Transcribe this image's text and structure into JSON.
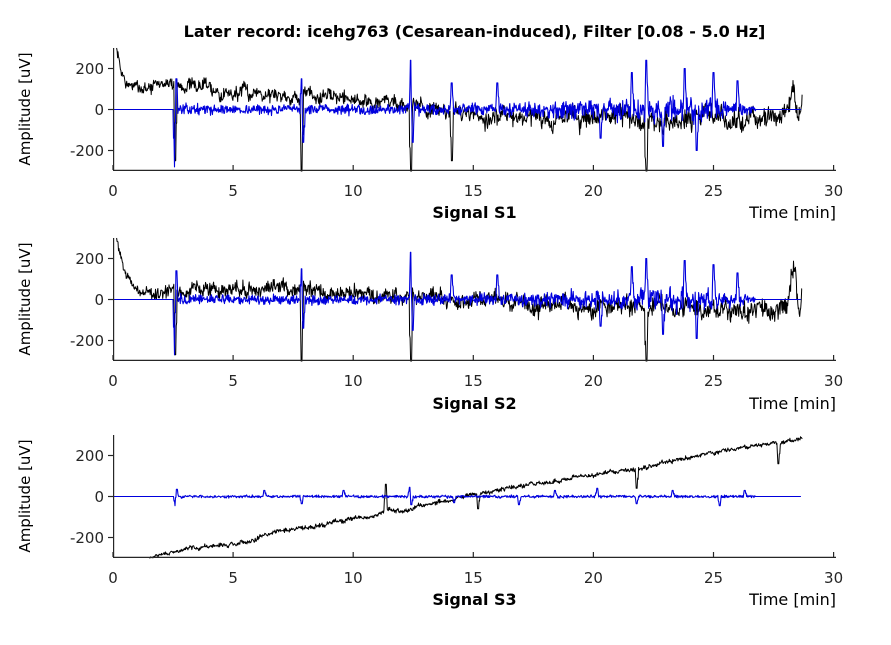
{
  "title": "Later record: icehg763 (Cesarean-induced), Filter [0.08 - 5.0 Hz]",
  "colors": {
    "raw_signal": "#000000",
    "filtered_signal": "#0000dd",
    "axis": "#262626",
    "tick_label": "#262626",
    "text": "#000000",
    "background": "#ffffff"
  },
  "chart_data": [
    {
      "type": "line",
      "xlabel": "Signal S1",
      "xlabel_right": "Time [min]",
      "ylabel": "Amplitude [uV]",
      "xlim": [
        0,
        30.1
      ],
      "ylim": [
        -300,
        300
      ],
      "xticks": [
        0,
        5,
        10,
        15,
        20,
        25,
        30
      ],
      "yticks": [
        200,
        0,
        -200
      ],
      "grid": false,
      "series": [
        {
          "name": "raw-signal",
          "kind": "raw",
          "color": "#000000",
          "seed": 7,
          "x_range": [
            0.15,
            28.7
          ],
          "trend": [
            [
              0.15,
              300
            ],
            [
              0.35,
              170
            ],
            [
              0.6,
              110
            ],
            [
              1.2,
              105
            ],
            [
              1.8,
              115
            ],
            [
              2.4,
              120
            ],
            [
              3.2,
              95
            ],
            [
              3.8,
              120
            ],
            [
              4.3,
              90
            ],
            [
              5.2,
              85
            ],
            [
              6.0,
              95
            ],
            [
              6.8,
              75
            ],
            [
              7.6,
              60
            ],
            [
              8.4,
              70
            ],
            [
              9.2,
              50
            ],
            [
              10.0,
              55
            ],
            [
              10.8,
              35
            ],
            [
              11.6,
              45
            ],
            [
              12.4,
              25
            ],
            [
              13.2,
              5
            ],
            [
              14.0,
              -10
            ],
            [
              15.0,
              -20
            ],
            [
              16.0,
              -30
            ],
            [
              17.0,
              -25
            ],
            [
              18.0,
              -45
            ],
            [
              19.0,
              -35
            ],
            [
              20.0,
              -55
            ],
            [
              21.0,
              -40
            ],
            [
              22.0,
              -60
            ],
            [
              23.0,
              -45
            ],
            [
              24.0,
              -60
            ],
            [
              25.0,
              -45
            ],
            [
              25.8,
              -70
            ],
            [
              26.6,
              -50
            ],
            [
              27.4,
              -80
            ],
            [
              28.0,
              -30
            ],
            [
              28.3,
              90
            ],
            [
              28.55,
              -60
            ],
            [
              28.7,
              30
            ]
          ],
          "amp": [
            [
              0.2,
              30
            ],
            [
              2,
              40
            ],
            [
              5,
              45
            ],
            [
              8,
              45
            ],
            [
              12,
              45
            ],
            [
              16,
              55
            ],
            [
              20,
              65
            ],
            [
              24,
              70
            ],
            [
              27,
              60
            ],
            [
              28.7,
              70
            ]
          ],
          "spikes": [
            {
              "t": 2.6,
              "v": -250
            },
            {
              "t": 7.85,
              "v": -300
            },
            {
              "t": 12.4,
              "v": -400
            },
            {
              "t": 14.1,
              "v": -250
            },
            {
              "t": 22.2,
              "v": -380
            }
          ]
        },
        {
          "name": "filtered-signal",
          "kind": "filtered",
          "color": "#0000dd",
          "seed": 13,
          "x_range": [
            0,
            28.65
          ],
          "active": [
            2.55,
            26.75
          ],
          "trend": [
            [
              0,
              0
            ],
            [
              30,
              0
            ]
          ],
          "amp": [
            [
              2.6,
              35
            ],
            [
              5,
              30
            ],
            [
              9,
              35
            ],
            [
              12,
              35
            ],
            [
              14,
              40
            ],
            [
              16,
              40
            ],
            [
              18,
              55
            ],
            [
              20,
              65
            ],
            [
              22,
              80
            ],
            [
              23.5,
              85
            ],
            [
              25,
              75
            ],
            [
              26,
              50
            ],
            [
              26.7,
              25
            ]
          ],
          "spikes": [
            {
              "t": 2.58,
              "v": -280
            },
            {
              "t": 2.64,
              "v": 150
            },
            {
              "t": 7.85,
              "v": 150
            },
            {
              "t": 7.92,
              "v": -160
            },
            {
              "t": 12.4,
              "v": 240
            },
            {
              "t": 12.47,
              "v": -160
            },
            {
              "t": 14.1,
              "v": 130
            },
            {
              "t": 16.0,
              "v": 130
            },
            {
              "t": 20.3,
              "v": -140
            },
            {
              "t": 21.6,
              "v": 180
            },
            {
              "t": 22.2,
              "v": 240
            },
            {
              "t": 22.9,
              "v": -180
            },
            {
              "t": 23.8,
              "v": 200
            },
            {
              "t": 24.3,
              "v": -200
            },
            {
              "t": 25.0,
              "v": 180
            },
            {
              "t": 26.0,
              "v": 140
            }
          ]
        }
      ]
    },
    {
      "type": "line",
      "xlabel": "Signal S2",
      "xlabel_right": "Time [min]",
      "ylabel": "Amplitude [uV]",
      "xlim": [
        0,
        30.1
      ],
      "ylim": [
        -300,
        300
      ],
      "xticks": [
        0,
        5,
        10,
        15,
        20,
        25,
        30
      ],
      "yticks": [
        200,
        0,
        -200
      ],
      "grid": false,
      "series": [
        {
          "name": "raw-signal",
          "kind": "raw",
          "color": "#000000",
          "seed": 101,
          "x_range": [
            0.15,
            28.7
          ],
          "trend": [
            [
              0.15,
              300
            ],
            [
              0.35,
              200
            ],
            [
              0.6,
              120
            ],
            [
              0.9,
              60
            ],
            [
              1.3,
              25
            ],
            [
              2.0,
              35
            ],
            [
              2.8,
              45
            ],
            [
              3.6,
              60
            ],
            [
              4.4,
              40
            ],
            [
              5.2,
              55
            ],
            [
              6.0,
              40
            ],
            [
              6.8,
              60
            ],
            [
              7.6,
              70
            ],
            [
              8.4,
              55
            ],
            [
              9.2,
              30
            ],
            [
              10.0,
              40
            ],
            [
              11.0,
              25
            ],
            [
              12.0,
              30
            ],
            [
              13.0,
              10
            ],
            [
              14.0,
              0
            ],
            [
              15.0,
              -10
            ],
            [
              16.0,
              5
            ],
            [
              17.0,
              -15
            ],
            [
              18.0,
              -30
            ],
            [
              19.0,
              -15
            ],
            [
              20.0,
              -40
            ],
            [
              21.0,
              -25
            ],
            [
              22.0,
              -45
            ],
            [
              23.0,
              -30
            ],
            [
              24.0,
              -50
            ],
            [
              25.0,
              -35
            ],
            [
              26.0,
              -55
            ],
            [
              26.8,
              -35
            ],
            [
              27.6,
              -70
            ],
            [
              28.1,
              -20
            ],
            [
              28.4,
              180
            ],
            [
              28.6,
              -80
            ],
            [
              28.7,
              20
            ]
          ],
          "amp": [
            [
              0.2,
              25
            ],
            [
              2,
              40
            ],
            [
              5,
              45
            ],
            [
              8,
              45
            ],
            [
              12,
              45
            ],
            [
              16,
              50
            ],
            [
              20,
              60
            ],
            [
              24,
              65
            ],
            [
              27,
              60
            ],
            [
              28.7,
              70
            ]
          ],
          "spikes": [
            {
              "t": 2.6,
              "v": -270
            },
            {
              "t": 7.85,
              "v": -300
            },
            {
              "t": 12.4,
              "v": -400
            },
            {
              "t": 22.2,
              "v": -380
            }
          ]
        },
        {
          "name": "filtered-signal",
          "kind": "filtered",
          "color": "#0000dd",
          "seed": 57,
          "x_range": [
            0,
            28.65
          ],
          "active": [
            2.55,
            26.75
          ],
          "trend": [
            [
              0,
              0
            ],
            [
              30,
              0
            ]
          ],
          "amp": [
            [
              2.6,
              35
            ],
            [
              5,
              30
            ],
            [
              9,
              35
            ],
            [
              12,
              35
            ],
            [
              14,
              40
            ],
            [
              16,
              40
            ],
            [
              18,
              50
            ],
            [
              20,
              60
            ],
            [
              22,
              70
            ],
            [
              23.5,
              80
            ],
            [
              25,
              70
            ],
            [
              26,
              45
            ],
            [
              26.7,
              25
            ]
          ],
          "spikes": [
            {
              "t": 2.58,
              "v": -270
            },
            {
              "t": 2.64,
              "v": 140
            },
            {
              "t": 7.85,
              "v": 150
            },
            {
              "t": 7.92,
              "v": -140
            },
            {
              "t": 12.4,
              "v": 230
            },
            {
              "t": 12.47,
              "v": -150
            },
            {
              "t": 14.1,
              "v": 120
            },
            {
              "t": 16.0,
              "v": 120
            },
            {
              "t": 20.3,
              "v": -130
            },
            {
              "t": 21.6,
              "v": 160
            },
            {
              "t": 22.2,
              "v": 200
            },
            {
              "t": 22.9,
              "v": -170
            },
            {
              "t": 23.8,
              "v": 190
            },
            {
              "t": 24.3,
              "v": -190
            },
            {
              "t": 25.0,
              "v": 170
            },
            {
              "t": 26.0,
              "v": 130
            }
          ]
        }
      ]
    },
    {
      "type": "line",
      "xlabel": "Signal S3",
      "xlabel_right": "Time [min]",
      "ylabel": "Amplitude [uV]",
      "xlim": [
        0,
        30.1
      ],
      "ylim": [
        -300,
        300
      ],
      "xticks": [
        0,
        5,
        10,
        15,
        20,
        25,
        30
      ],
      "yticks": [
        200,
        0,
        -200
      ],
      "grid": false,
      "series": [
        {
          "name": "raw-signal",
          "kind": "raw",
          "color": "#000000",
          "seed": 29,
          "x_range": [
            1.5,
            28.7
          ],
          "trend": [
            [
              1.5,
              -300
            ],
            [
              2.0,
              -285
            ],
            [
              2.6,
              -270
            ],
            [
              3.2,
              -250
            ],
            [
              4.0,
              -245
            ],
            [
              5.0,
              -235
            ],
            [
              5.8,
              -210
            ],
            [
              6.5,
              -180
            ],
            [
              7.2,
              -165
            ],
            [
              8.0,
              -150
            ],
            [
              9.0,
              -130
            ],
            [
              10.0,
              -110
            ],
            [
              11.0,
              -90
            ],
            [
              11.5,
              -65
            ],
            [
              12.2,
              -70
            ],
            [
              13.0,
              -40
            ],
            [
              14.0,
              -15
            ],
            [
              15.0,
              10
            ],
            [
              16.0,
              30
            ],
            [
              17.0,
              50
            ],
            [
              18.0,
              65
            ],
            [
              19.0,
              85
            ],
            [
              20.0,
              110
            ],
            [
              21.0,
              125
            ],
            [
              22.0,
              140
            ],
            [
              23.0,
              165
            ],
            [
              24.0,
              190
            ],
            [
              25.0,
              215
            ],
            [
              26.0,
              235
            ],
            [
              27.0,
              250
            ],
            [
              27.8,
              260
            ],
            [
              28.4,
              275
            ],
            [
              28.7,
              285
            ]
          ],
          "amp": [
            [
              1.5,
              7
            ],
            [
              3,
              12
            ],
            [
              8,
              14
            ],
            [
              15,
              13
            ],
            [
              22,
              14
            ],
            [
              28.7,
              12
            ]
          ],
          "spikes": [
            {
              "t": 11.35,
              "v": 60
            },
            {
              "t": 15.2,
              "v": -60
            },
            {
              "t": 21.8,
              "v": 40
            },
            {
              "t": 27.7,
              "v": 160
            }
          ]
        },
        {
          "name": "filtered-signal",
          "kind": "filtered",
          "color": "#0000dd",
          "seed": 83,
          "x_range": [
            0,
            28.65
          ],
          "active": [
            2.55,
            26.75
          ],
          "trend": [
            [
              0,
              0
            ],
            [
              30,
              0
            ]
          ],
          "amp": [
            [
              2.6,
              9
            ],
            [
              10,
              9
            ],
            [
              20,
              10
            ],
            [
              26.7,
              8
            ]
          ],
          "spikes": [
            {
              "t": 2.6,
              "v": -45
            },
            {
              "t": 2.66,
              "v": 35
            },
            {
              "t": 6.3,
              "v": 30
            },
            {
              "t": 7.85,
              "v": -35
            },
            {
              "t": 9.6,
              "v": 30
            },
            {
              "t": 12.35,
              "v": 45
            },
            {
              "t": 12.42,
              "v": -40
            },
            {
              "t": 14.2,
              "v": -30
            },
            {
              "t": 16.9,
              "v": -40
            },
            {
              "t": 18.4,
              "v": 30
            },
            {
              "t": 20.15,
              "v": 40
            },
            {
              "t": 21.8,
              "v": -35
            },
            {
              "t": 23.3,
              "v": 30
            },
            {
              "t": 25.25,
              "v": -45
            },
            {
              "t": 26.3,
              "v": 30
            }
          ]
        }
      ]
    }
  ]
}
